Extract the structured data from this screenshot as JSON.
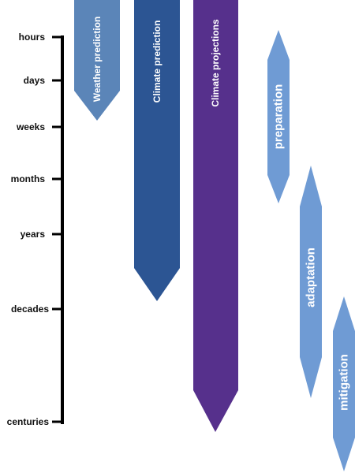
{
  "timescale": {
    "labels": [
      "hours",
      "days",
      "weeks",
      "months",
      "years",
      "decades",
      "centuries"
    ]
  },
  "bands": [
    {
      "label": "Weather prediction",
      "color": "#5b85b8"
    },
    {
      "label": "Climate prediction",
      "color": "#2c5593"
    },
    {
      "label": "Climate projections",
      "color": "#56308c"
    }
  ],
  "responses": [
    {
      "label": "preparation",
      "color": "#6f9bd4"
    },
    {
      "label": "adaptation",
      "color": "#6f9bd4"
    },
    {
      "label": "mitigation",
      "color": "#6f9bd4"
    }
  ]
}
